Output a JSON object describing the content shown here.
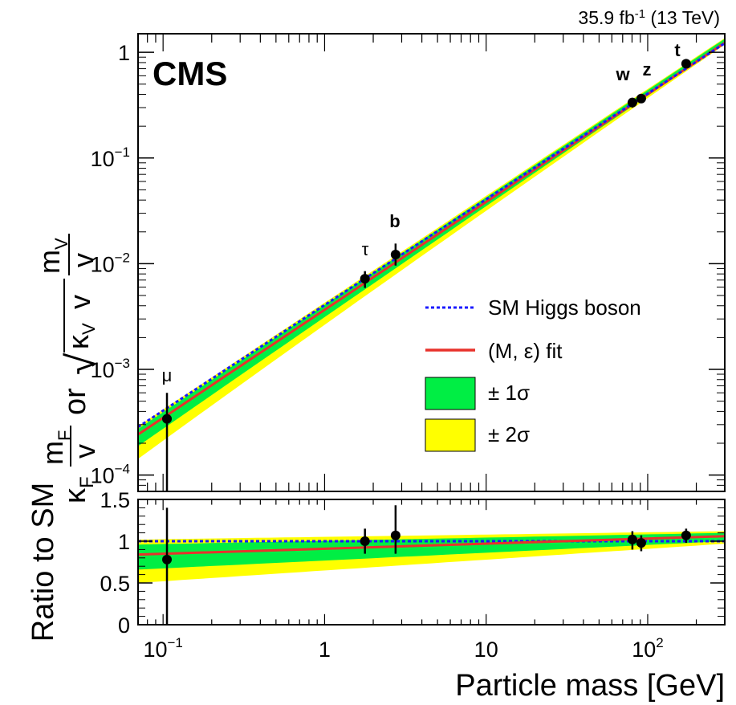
{
  "header": {
    "lumi_value": "35.9 fb",
    "lumi_exp": "-1",
    "lumi_energy": " (13 TeV)",
    "experiment": "CMS"
  },
  "chart_data": [
    {
      "type": "scatter",
      "panel": "main",
      "title": "",
      "xlabel": "Particle mass [GeV]",
      "x_scale": "log",
      "y_scale": "log",
      "xlim": [
        0.07,
        300
      ],
      "ylim": [
        7e-05,
        1.5
      ],
      "ylabel_parts": {
        "k": "κ",
        "f_sub": "F",
        "m_f": "m",
        "m_f_sub": "F",
        "den": "v",
        "or": "or",
        "sqrt": "√",
        "m_v": "m",
        "m_v_sub": "V",
        "k_v": "κ",
        "k_v_sub": "V",
        "den2": "v"
      },
      "x_ticks": [
        {
          "value": 0.1,
          "base": "10",
          "exp": "−1"
        },
        {
          "value": 1,
          "base": "1",
          "exp": ""
        },
        {
          "value": 10,
          "base": "10",
          "exp": ""
        },
        {
          "value": 100,
          "base": "10",
          "exp": "2"
        }
      ],
      "y_ticks": [
        {
          "value": 0.0001,
          "base": "10",
          "exp": "−4"
        },
        {
          "value": 0.001,
          "base": "10",
          "exp": "−3"
        },
        {
          "value": 0.01,
          "base": "10",
          "exp": "−2"
        },
        {
          "value": 0.1,
          "base": "10",
          "exp": "−1"
        },
        {
          "value": 1,
          "base": "1",
          "exp": ""
        }
      ],
      "points": [
        {
          "label": "μ",
          "x": 0.1057,
          "y": 0.00034,
          "y_lo": 7e-05,
          "y_hi": 0.0006
        },
        {
          "label": "τ",
          "x": 1.777,
          "y": 0.0072,
          "y_lo": 0.0059,
          "y_hi": 0.0085
        },
        {
          "label": "b",
          "x": 2.75,
          "y": 0.0122,
          "y_lo": 0.0096,
          "y_hi": 0.0155
        },
        {
          "label": "W",
          "x": 80.4,
          "y": 0.335,
          "y_lo": 0.3,
          "y_hi": 0.37
        },
        {
          "label": "Z",
          "x": 91.2,
          "y": 0.365,
          "y_lo": 0.34,
          "y_hi": 0.39
        },
        {
          "label": "t",
          "x": 173,
          "y": 0.78,
          "y_lo": 0.72,
          "y_hi": 0.84
        }
      ],
      "point_label_display": [
        "μ",
        "τ",
        "b",
        "w",
        "z",
        "t"
      ],
      "sm_line": {
        "slope": 1,
        "ref_mass": 246
      },
      "fit": {
        "M": 246,
        "epsilon": 0.014
      },
      "band_1sigma_ratio": {
        "at_0p07": [
          0.66,
          0.96
        ],
        "at_300": [
          1.0,
          1.1
        ]
      },
      "band_2sigma_ratio": {
        "at_0p07": [
          0.5,
          1.02
        ],
        "at_300": [
          0.97,
          1.12
        ]
      },
      "legend": {
        "placement": "center-right",
        "entries": [
          {
            "label": "SM Higgs boson",
            "style": "dotted",
            "color": "#1a1aff"
          },
          {
            "label": "(M, ε) fit",
            "style": "line",
            "color": "#e8322c"
          },
          {
            "label": "± 1σ",
            "style": "box",
            "color": "#00ee44"
          },
          {
            "label": "± 2σ",
            "style": "box",
            "color": "#ffff00"
          }
        ]
      }
    },
    {
      "type": "scatter",
      "panel": "ratio",
      "ylabel": "Ratio to SM",
      "xlabel": "Particle mass [GeV]",
      "x_scale": "log",
      "xlim": [
        0.07,
        300
      ],
      "ylim": [
        0,
        1.5
      ],
      "y_ticks": [
        "0",
        "0.5",
        "1",
        "1.5"
      ],
      "points": [
        {
          "x": 0.1057,
          "y": 0.78,
          "y_lo": 0.0,
          "y_hi": 1.4
        },
        {
          "x": 1.777,
          "y": 1.0,
          "y_lo": 0.85,
          "y_hi": 1.15
        },
        {
          "x": 2.75,
          "y": 1.07,
          "y_lo": 0.85,
          "y_hi": 1.43
        },
        {
          "x": 80.4,
          "y": 1.02,
          "y_lo": 0.9,
          "y_hi": 1.12
        },
        {
          "x": 91.2,
          "y": 0.98,
          "y_lo": 0.88,
          "y_hi": 1.07
        },
        {
          "x": 173,
          "y": 1.07,
          "y_lo": 0.98,
          "y_hi": 1.15
        }
      ]
    }
  ],
  "colors": {
    "sm": "#1a1aff",
    "fit": "#e8322c",
    "one_sigma": "#00ee44",
    "two_sigma": "#ffff00",
    "frame": "#000000"
  }
}
